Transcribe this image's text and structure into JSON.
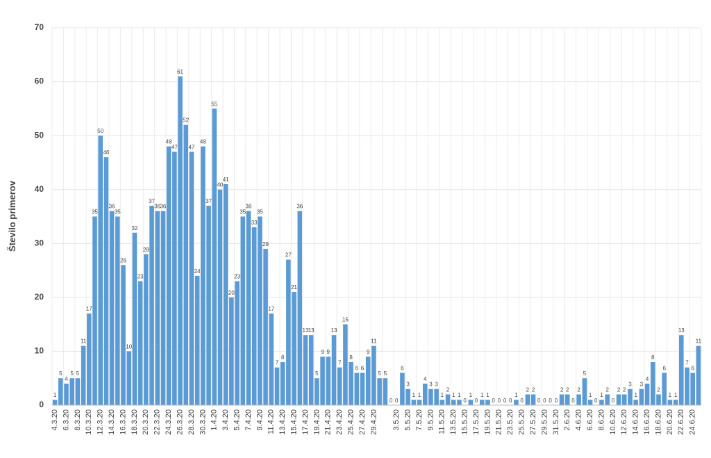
{
  "chart_data": {
    "type": "bar",
    "y_label": "Število primerov",
    "color": "#5b9bd5",
    "categories": [
      "4.3.20",
      null,
      "6.3.20",
      null,
      "8.3.20",
      null,
      "10.3.20",
      null,
      "12.3.20",
      null,
      "14.3.20",
      null,
      "16.3.20",
      null,
      "18.3.20",
      null,
      "20.3.20",
      null,
      "22.3.20",
      null,
      "24.3.20",
      null,
      "26.3.20",
      null,
      "28.3.20",
      null,
      "30.3.20",
      null,
      "1.4.20",
      null,
      "3.4.20",
      null,
      "5.4.20",
      null,
      "7.4.20",
      null,
      "9.4.20",
      null,
      "11.4.20",
      null,
      "13.4.20",
      null,
      "15.4.20",
      null,
      "17.4.20",
      null,
      "19.4.20",
      null,
      "21.4.20",
      null,
      "23.4.20",
      null,
      "25.4.20",
      null,
      "27.4.20",
      null,
      "29.4.20",
      null,
      null,
      null,
      "3.5.20",
      null,
      "5.5.20",
      null,
      "7.5.20",
      null,
      "9.5.20",
      null,
      "11.5.20",
      null,
      "13.5.20",
      null,
      "15.5.20",
      null,
      "17.5.20",
      null,
      "19.5.20",
      null,
      "21.5.20",
      null,
      "23.5.20",
      null,
      "25.5.20",
      null,
      "27.5.20",
      null,
      "29.5.20",
      null,
      "31.5.20",
      null,
      "2.6.20",
      null,
      "4.6.20",
      null,
      "6.6.20",
      null,
      "8.6.20",
      null,
      "10.6.20",
      null,
      "12.6.20",
      null,
      "14.6.20",
      null,
      "16.6.20",
      null,
      "18.6.20",
      null,
      "20.6.20",
      null,
      "22.6.20",
      null,
      "24.6.20",
      null
    ],
    "values": [
      1,
      5,
      4,
      5,
      5,
      11,
      17,
      35,
      50,
      46,
      36,
      35,
      26,
      10,
      32,
      23,
      28,
      37,
      36,
      36,
      48,
      47,
      61,
      52,
      47,
      24,
      48,
      37,
      55,
      40,
      41,
      20,
      23,
      35,
      36,
      33,
      35,
      29,
      17,
      7,
      8,
      27,
      21,
      36,
      13,
      13,
      5,
      9,
      9,
      13,
      7,
      15,
      8,
      6,
      6,
      9,
      11,
      5,
      5,
      0,
      0,
      6,
      3,
      1,
      1,
      4,
      3,
      3,
      1,
      2,
      1,
      1,
      0,
      1,
      0,
      1,
      1,
      0,
      0,
      0,
      0,
      1,
      0,
      2,
      2,
      0,
      0,
      0,
      0,
      2,
      2,
      0,
      2,
      5,
      1,
      0,
      1,
      2,
      0,
      2,
      2,
      3,
      1,
      3,
      4,
      8,
      2,
      6,
      1,
      1,
      13,
      7,
      6,
      11
    ],
    "ylim": [
      0,
      70
    ],
    "yticks": [
      0,
      10,
      20,
      30,
      40,
      50,
      60,
      70
    ],
    "grid": true
  }
}
